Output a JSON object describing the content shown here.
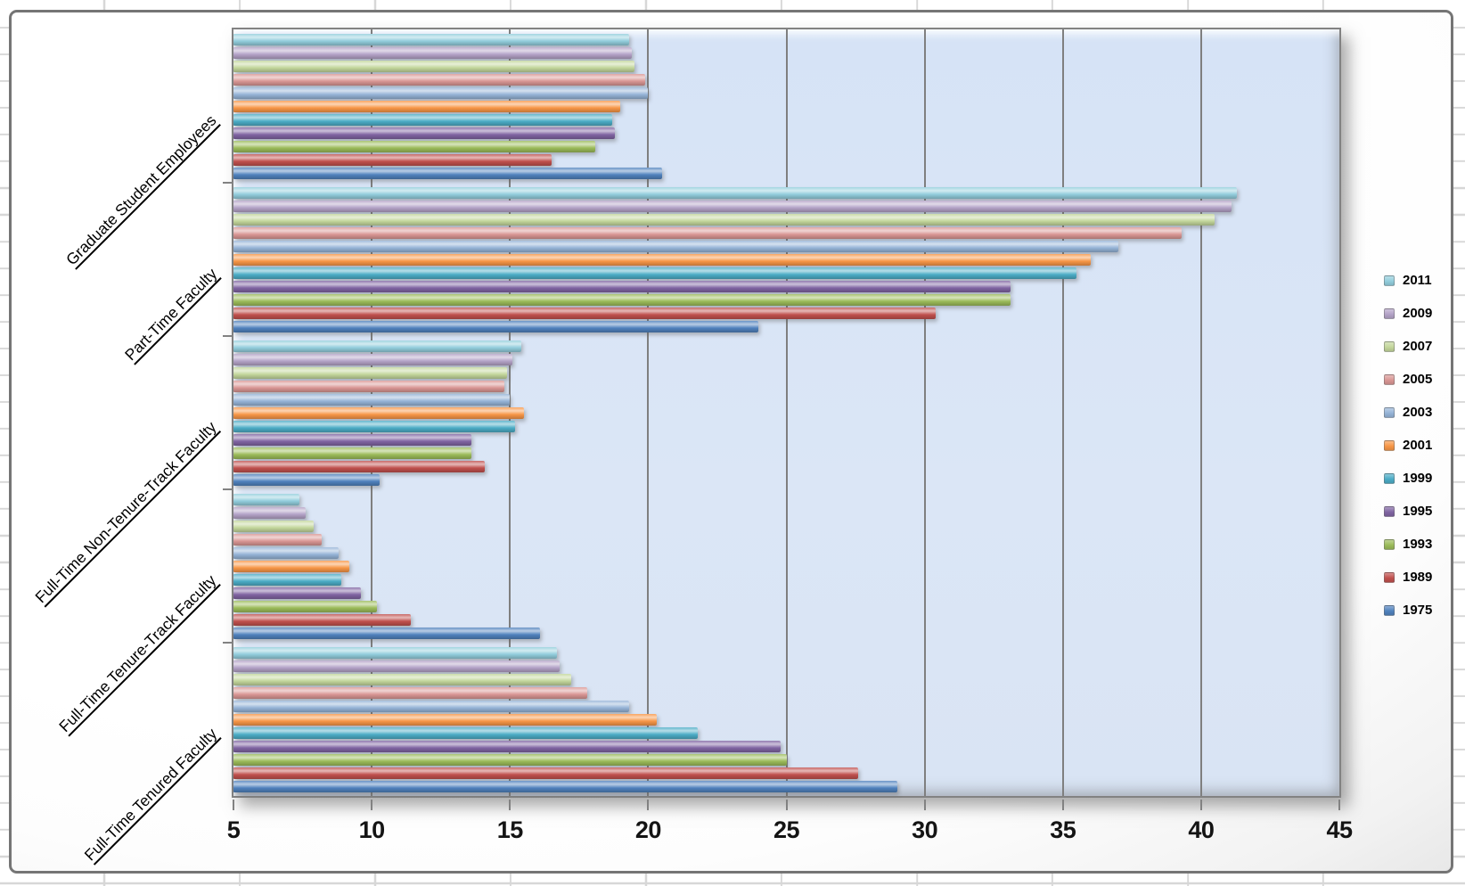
{
  "chart_data": {
    "type": "bar",
    "orientation": "horizontal",
    "title": "",
    "xlabel": "",
    "ylabel": "",
    "categories": [
      "Graduate Student Employees",
      "Part-Time Faculty",
      "Full-Time Non-Tenure-Track Faculty",
      "Full-Time Tenure-Track Faculty",
      "Full-Time Tenured Faculty"
    ],
    "series": [
      {
        "name": "2011",
        "color": "#92CDDC",
        "values": [
          19.3,
          41.3,
          15.4,
          7.4,
          16.7
        ]
      },
      {
        "name": "2009",
        "color": "#B3A2C7",
        "values": [
          19.4,
          41.1,
          15.1,
          7.6,
          16.8
        ]
      },
      {
        "name": "2007",
        "color": "#C3D69B",
        "values": [
          19.5,
          40.5,
          14.9,
          7.9,
          17.2
        ]
      },
      {
        "name": "2005",
        "color": "#D99694",
        "values": [
          19.9,
          39.3,
          14.8,
          8.2,
          17.8
        ]
      },
      {
        "name": "2003",
        "color": "#95B3D7",
        "values": [
          20.0,
          37.0,
          15.0,
          8.8,
          19.3
        ]
      },
      {
        "name": "2001",
        "color": "#F79646",
        "values": [
          19.0,
          36.0,
          15.5,
          9.2,
          20.3
        ]
      },
      {
        "name": "1999",
        "color": "#4BACC6",
        "values": [
          18.7,
          35.5,
          15.2,
          8.9,
          21.8
        ]
      },
      {
        "name": "1995",
        "color": "#8064A2",
        "values": [
          18.8,
          33.1,
          13.6,
          9.6,
          24.8
        ]
      },
      {
        "name": "1993",
        "color": "#9BBB59",
        "values": [
          18.1,
          33.1,
          13.6,
          10.2,
          25.0
        ]
      },
      {
        "name": "1989",
        "color": "#C0504D",
        "values": [
          16.5,
          30.4,
          14.1,
          11.4,
          27.6
        ]
      },
      {
        "name": "1975",
        "color": "#4F81BD",
        "values": [
          20.5,
          24.0,
          10.3,
          16.1,
          29.0
        ]
      }
    ],
    "x_min": 5,
    "x_max": 45,
    "x_ticks": [
      5,
      10,
      15,
      20,
      25,
      30,
      35,
      40,
      45
    ],
    "x_tick_labels": [
      "5",
      "10",
      "15",
      "20",
      "25",
      "30",
      "35",
      "40",
      "45"
    ],
    "legend_position": "right",
    "legend_items": [
      "2011",
      "2009",
      "2007",
      "2005",
      "2003",
      "2001",
      "1999",
      "1995",
      "1993",
      "1989",
      "1975"
    ],
    "grid": true,
    "plot_background": "#DCE6F2",
    "gridline_color": "#7F7F7F"
  }
}
